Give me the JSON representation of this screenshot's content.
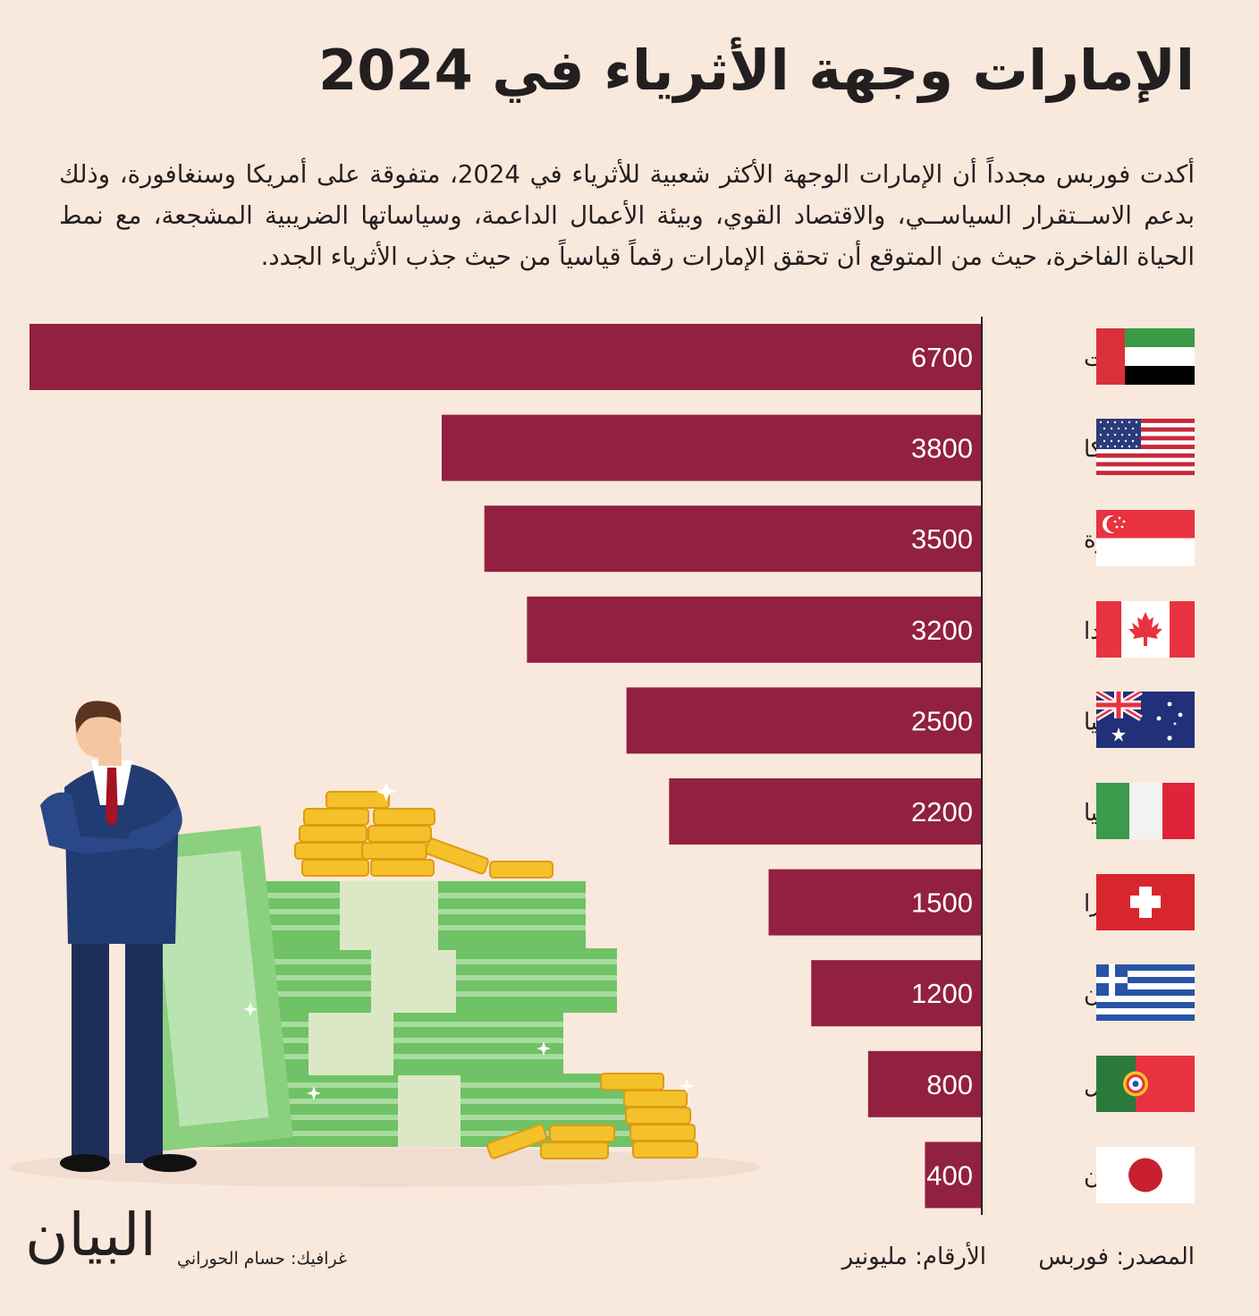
{
  "title": "الإمارات وجهة الأثرياء في 2024",
  "intro": "أكدت فوربس مجدداً أن الإمارات الوجهة الأكثر شعبية للأثرياء في 2024، متفوقة على أمريكا وسنغافورة، وذلك بدعم الاســتقرار السياســي، والاقتصاد القوي، وبيئة الأعمال الداعمة، وسياساتها الضريبية المشجعة، مع نمط الحياة الفاخرة، حيث من المتوقع أن تحقق الإمارات رقماً قياسياً من حيث جذب الأثرياء الجدد.",
  "colors": {
    "bar": "#912041",
    "background": "#f9e8dc",
    "text": "#231f20"
  },
  "chart_data": {
    "type": "bar",
    "orientation": "horizontal",
    "categories": [
      "الإمارات",
      "أمريكا",
      "سنغافورة",
      "كندا",
      "أستراليا",
      "إيطاليا",
      "سويسرا",
      "اليونان",
      "البرتغال",
      "اليابان"
    ],
    "values": [
      6700,
      3800,
      3500,
      3200,
      2500,
      2200,
      1500,
      1200,
      800,
      400
    ],
    "value_labels": [
      "6700",
      "3800",
      "3500",
      "3200",
      "2500",
      "2200",
      "1500",
      "1200",
      "800",
      "400"
    ],
    "flags": [
      "uae-flag-icon",
      "usa-flag-icon",
      "singapore-flag-icon",
      "canada-flag-icon",
      "australia-flag-icon",
      "italy-flag-icon",
      "switzerland-flag-icon",
      "greece-flag-icon",
      "portugal-flag-icon",
      "japan-flag-icon"
    ],
    "xlim": [
      0,
      6700
    ],
    "grid": false,
    "bar_direction": "right-to-left"
  },
  "footer": {
    "source": "المصدر: فوربس",
    "units": "الأرقام: مليونير",
    "credit": "غرافيك: حسام الحوراني",
    "logo": "البيان"
  },
  "illustration": "businessman-with-money-icon"
}
